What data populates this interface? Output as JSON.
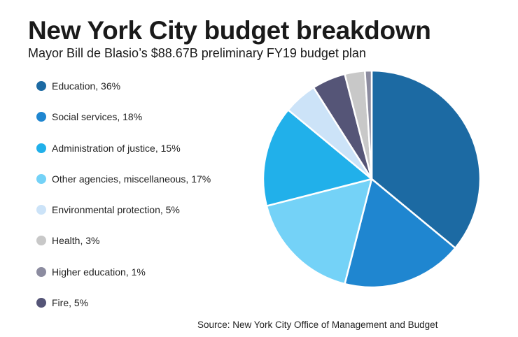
{
  "chart_data": {
    "type": "pie",
    "title": "New York City budget breakdown",
    "subtitle": "Mayor Bill de Blasio’s $88.67B preliminary FY19 budget plan",
    "source": "Source: New York City Office of Management and Budget",
    "legend_position": "left",
    "slices": [
      {
        "name": "Education",
        "label": "Education, 36%",
        "value": 36,
        "color": "#1c6aa3"
      },
      {
        "name": "Social services",
        "label": "Social services, 18%",
        "value": 18,
        "color": "#1f86d0"
      },
      {
        "name": "Administration of justice",
        "label": "Administration of justice, 15%",
        "value": 15,
        "color": "#21b0ea"
      },
      {
        "name": "Other agencies, miscellaneous",
        "label": "Other agencies, miscellaneous, 17%",
        "value": 17,
        "color": "#74d2f7"
      },
      {
        "name": "Environmental protection",
        "label": "Environmental protection, 5%",
        "value": 5,
        "color": "#cce3f8"
      },
      {
        "name": "Health",
        "label": "Health, 3%",
        "value": 3,
        "color": "#c8c8c8"
      },
      {
        "name": "Higher education",
        "label": "Higher education, 1%",
        "value": 1,
        "color": "#8c8ca0"
      },
      {
        "name": "Fire",
        "label": "Fire, 5%",
        "value": 5,
        "color": "#555577"
      }
    ],
    "pie_order": [
      "Education",
      "Social services",
      "Other agencies, miscellaneous",
      "Administration of justice",
      "Environmental protection",
      "Fire",
      "Health",
      "Higher education"
    ]
  }
}
